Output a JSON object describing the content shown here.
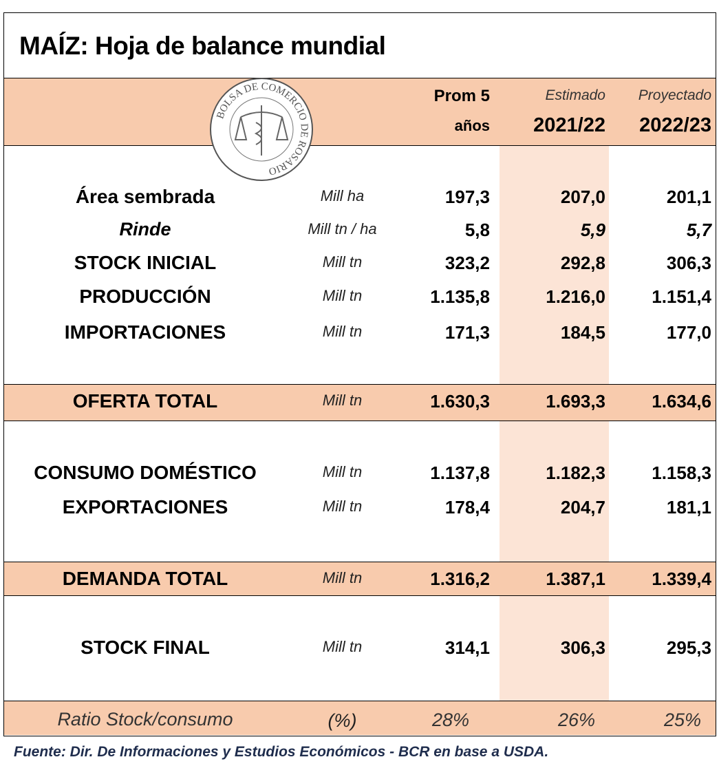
{
  "title": "MAÍZ: Hoja de balance mundial",
  "logo": {
    "text": "BOLSA DE COMERCIO DE ROSARIO"
  },
  "header": {
    "col1": [
      "Prom 5",
      "años"
    ],
    "col2": [
      "Estimado",
      "2021/22"
    ],
    "col3": [
      "Proyectado",
      "2022/23"
    ]
  },
  "rows": [
    {
      "label": "Área sembrada",
      "unit": "Mill ha",
      "values": [
        "197,3",
        "207,0",
        "201,1"
      ]
    },
    {
      "label": "Rinde",
      "unit": "Mill tn / ha",
      "values": [
        "5,8",
        "5,9",
        "5,7"
      ]
    },
    {
      "label": "STOCK INICIAL",
      "unit": "Mill tn",
      "values": [
        "323,2",
        "292,8",
        "306,3"
      ]
    },
    {
      "label": "PRODUCCIÓN",
      "unit": "Mill tn",
      "values": [
        "1.135,8",
        "1.216,0",
        "1.151,4"
      ]
    },
    {
      "label": "IMPORTACIONES",
      "unit": "Mill tn",
      "values": [
        "171,3",
        "184,5",
        "177,0"
      ]
    },
    {
      "label": "OFERTA TOTAL",
      "unit": "Mill tn",
      "values": [
        "1.630,3",
        "1.693,3",
        "1.634,6"
      ]
    },
    {
      "label": "CONSUMO DOMÉSTICO",
      "unit": "Mill tn",
      "values": [
        "1.137,8",
        "1.182,3",
        "1.158,3"
      ]
    },
    {
      "label": "EXPORTACIONES",
      "unit": "Mill tn",
      "values": [
        "178,4",
        "204,7",
        "181,1"
      ]
    },
    {
      "label": "DEMANDA TOTAL",
      "unit": "Mill tn",
      "values": [
        "1.316,2",
        "1.387,1",
        "1.339,4"
      ]
    },
    {
      "label": "STOCK FINAL",
      "unit": "Mill tn",
      "values": [
        "314,1",
        "306,3",
        "295,3"
      ]
    },
    {
      "label": "Ratio Stock/consumo",
      "unit": "(%)",
      "values": [
        "28%",
        "26%",
        "25%"
      ]
    }
  ],
  "footer": "Fuente: Dir. De Informaciones y Estudios Económicos - BCR en base a USDA."
}
